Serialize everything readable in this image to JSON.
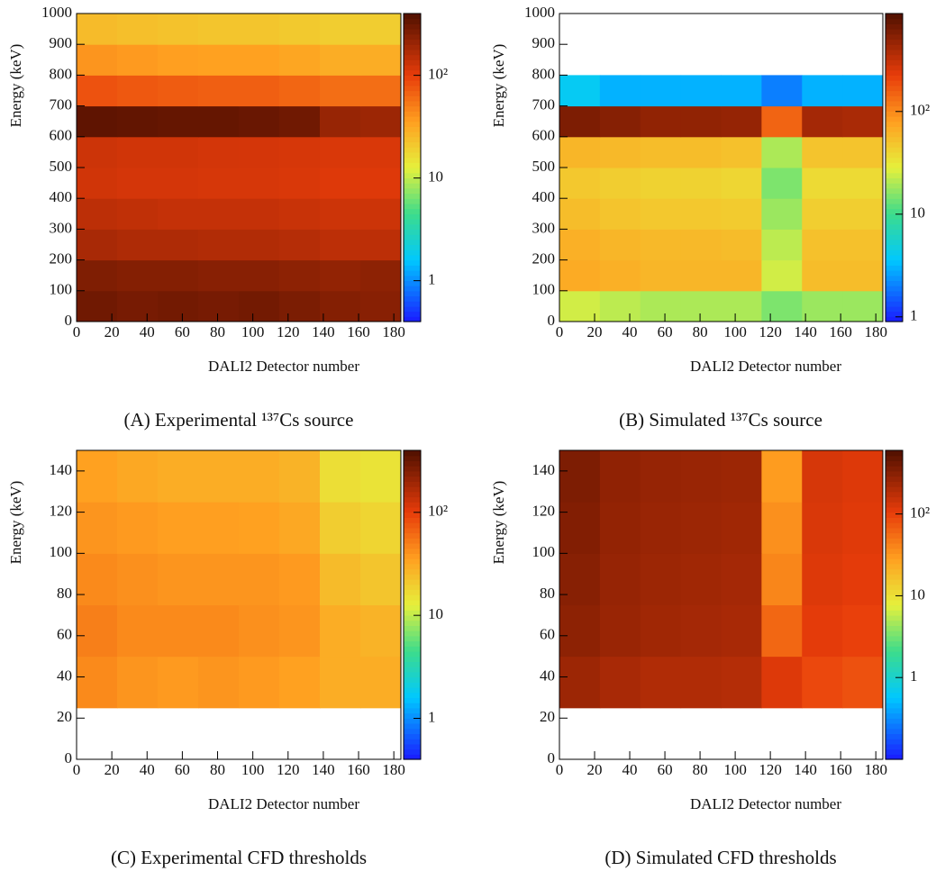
{
  "chart_data": [
    {
      "type": "heatmap",
      "caption": "(A) Experimental ¹³⁷Cs source",
      "xlabel": "DALI2 Detector number",
      "ylabel": "Energy (keV)",
      "xlim": [
        0,
        184
      ],
      "ylim": [
        0,
        1000
      ],
      "xticks": [
        0,
        20,
        40,
        60,
        80,
        100,
        120,
        140,
        160,
        180
      ],
      "yticks": [
        0,
        100,
        200,
        300,
        400,
        500,
        600,
        700,
        800,
        900,
        1000
      ],
      "zlim": [
        0.4,
        400
      ],
      "zticks": [
        1,
        10,
        {
          "value": 100,
          "label": "10²"
        }
      ],
      "log_z": true,
      "xbins": [
        0,
        23,
        46,
        69,
        92,
        115,
        138,
        161,
        184
      ],
      "ybins": [
        0,
        100,
        200,
        300,
        400,
        500,
        600,
        700,
        800,
        900,
        1000
      ],
      "z": [
        [
          300,
          280,
          290,
          280,
          290,
          270,
          250,
          240
        ],
        [
          260,
          250,
          250,
          240,
          240,
          230,
          220,
          230
        ],
        [
          180,
          170,
          170,
          165,
          165,
          160,
          150,
          150
        ],
        [
          150,
          145,
          140,
          140,
          140,
          135,
          130,
          130
        ],
        [
          125,
          120,
          120,
          118,
          118,
          115,
          110,
          110
        ],
        [
          130,
          125,
          125,
          122,
          120,
          118,
          115,
          115
        ],
        [
          350,
          340,
          330,
          330,
          320,
          300,
          210,
          200
        ],
        [
          80,
          75,
          72,
          70,
          70,
          65,
          60,
          60
        ],
        [
          40,
          38,
          36,
          35,
          35,
          33,
          30,
          30
        ],
        [
          25,
          24,
          23,
          22,
          22,
          21,
          20,
          20
        ]
      ]
    },
    {
      "type": "heatmap",
      "caption": "(B) Simulated ¹³⁷Cs source",
      "xlabel": "DALI2 Detector number",
      "ylabel": "Energy (keV)",
      "xlim": [
        0,
        184
      ],
      "ylim": [
        0,
        1000
      ],
      "xticks": [
        0,
        20,
        40,
        60,
        80,
        100,
        120,
        140,
        160,
        180
      ],
      "yticks": [
        0,
        100,
        200,
        300,
        400,
        500,
        600,
        700,
        800,
        900,
        1000
      ],
      "zlim": [
        0.9,
        900
      ],
      "zticks": [
        1,
        10,
        {
          "value": 100,
          "label": "10²"
        }
      ],
      "log_z": true,
      "xbins": [
        0,
        23,
        46,
        69,
        92,
        115,
        138,
        161,
        184
      ],
      "ybins": [
        0,
        100,
        200,
        300,
        400,
        500,
        600,
        700,
        800,
        900,
        1000
      ],
      "z": [
        [
          25,
          22,
          20,
          20,
          20,
          15,
          18,
          18
        ],
        [
          70,
          65,
          60,
          60,
          60,
          25,
          55,
          55
        ],
        [
          65,
          60,
          58,
          58,
          56,
          22,
          52,
          52
        ],
        [
          55,
          50,
          48,
          48,
          46,
          18,
          44,
          44
        ],
        [
          48,
          45,
          42,
          42,
          40,
          15,
          38,
          38
        ],
        [
          60,
          58,
          55,
          55,
          52,
          20,
          50,
          50
        ],
        [
          600,
          550,
          500,
          500,
          480,
          150,
          420,
          400
        ],
        [
          4,
          3,
          3,
          3,
          3,
          2,
          3,
          3
        ],
        [
          null,
          null,
          null,
          null,
          null,
          null,
          null,
          null
        ],
        [
          null,
          null,
          null,
          null,
          null,
          null,
          null,
          null
        ]
      ]
    },
    {
      "type": "heatmap",
      "caption": "(C) Experimental CFD thresholds",
      "xlabel": "DALI2 Detector number",
      "ylabel": "Energy (keV)",
      "xlim": [
        0,
        184
      ],
      "ylim": [
        0,
        150
      ],
      "xticks": [
        0,
        20,
        40,
        60,
        80,
        100,
        120,
        140,
        160,
        180
      ],
      "yticks": [
        0,
        20,
        40,
        60,
        80,
        100,
        120,
        140
      ],
      "zlim": [
        0.4,
        400
      ],
      "zticks": [
        1,
        10,
        {
          "value": 100,
          "label": "10²"
        }
      ],
      "log_z": true,
      "xbins": [
        0,
        23,
        46,
        69,
        92,
        115,
        138,
        161,
        184
      ],
      "ybins": [
        0,
        25,
        50,
        75,
        100,
        125,
        150
      ],
      "z": [
        [
          null,
          null,
          null,
          null,
          null,
          null,
          null,
          null
        ],
        [
          45,
          40,
          38,
          40,
          38,
          35,
          30,
          30
        ],
        [
          50,
          45,
          45,
          45,
          42,
          40,
          30,
          28
        ],
        [
          45,
          42,
          40,
          40,
          40,
          38,
          25,
          22
        ],
        [
          40,
          38,
          36,
          36,
          35,
          32,
          20,
          18
        ],
        [
          35,
          32,
          30,
          30,
          30,
          28,
          16,
          15
        ]
      ]
    },
    {
      "type": "heatmap",
      "caption": "(D) Simulated CFD thresholds",
      "xlabel": "DALI2 Detector number",
      "ylabel": "Energy (keV)",
      "xlim": [
        0,
        184
      ],
      "ylim": [
        0,
        150
      ],
      "xticks": [
        0,
        20,
        40,
        60,
        80,
        100,
        120,
        140,
        160,
        180
      ],
      "yticks": [
        0,
        20,
        40,
        60,
        80,
        100,
        120,
        140
      ],
      "zlim": [
        0.1,
        600
      ],
      "zticks": [
        1,
        10,
        {
          "value": 100,
          "label": "10²"
        }
      ],
      "log_z": true,
      "xbins": [
        0,
        23,
        46,
        69,
        92,
        115,
        138,
        161,
        184
      ],
      "ybins": [
        0,
        25,
        50,
        75,
        100,
        125,
        150
      ],
      "z": [
        [
          null,
          null,
          null,
          null,
          null,
          null,
          null,
          null
        ],
        [
          250,
          220,
          200,
          200,
          190,
          120,
          90,
          80
        ],
        [
          300,
          260,
          240,
          230,
          220,
          60,
          110,
          100
        ],
        [
          320,
          270,
          250,
          240,
          230,
          40,
          120,
          110
        ],
        [
          340,
          280,
          260,
          250,
          240,
          35,
          125,
          115
        ],
        [
          360,
          290,
          270,
          260,
          250,
          30,
          130,
          120
        ]
      ]
    }
  ]
}
